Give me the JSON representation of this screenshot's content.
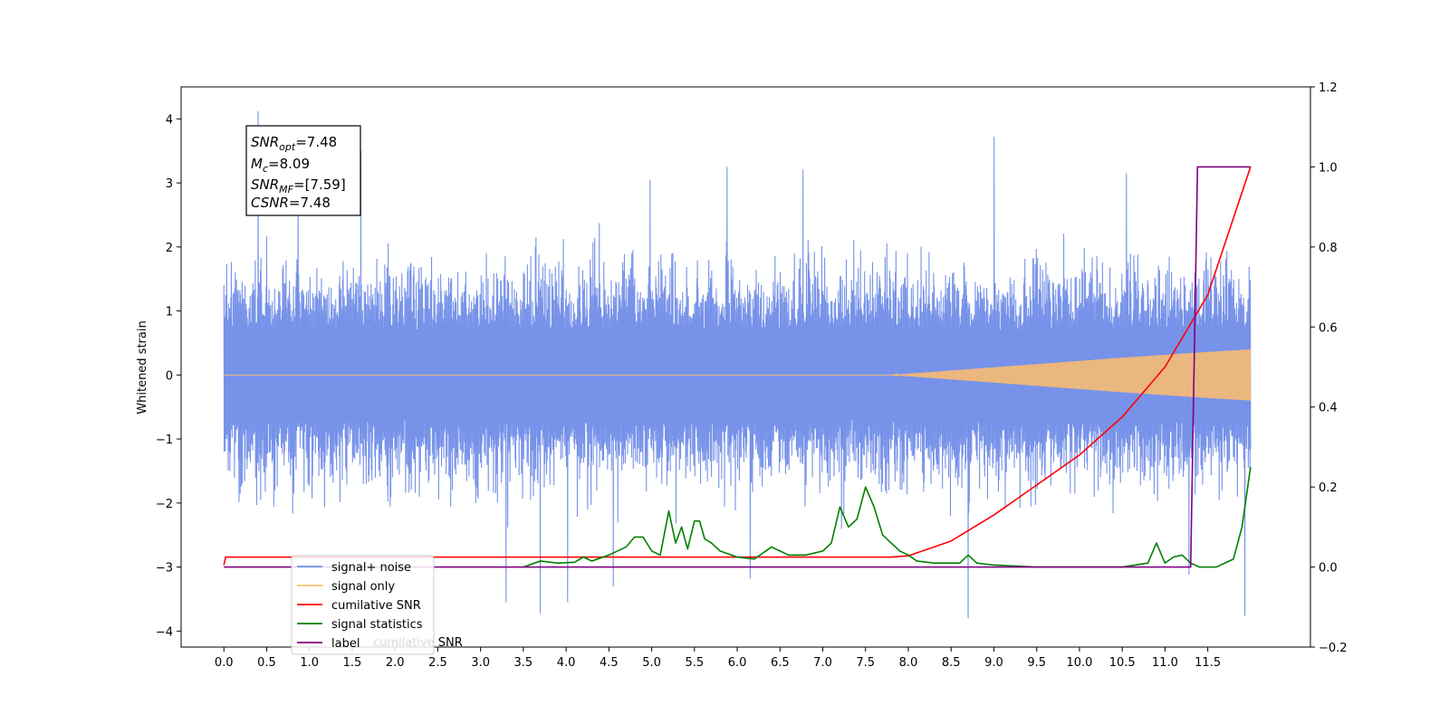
{
  "chart_data": {
    "type": "line",
    "title": "",
    "xlabel": "",
    "ylabel": "Whitened strain",
    "ylabel_right": "",
    "xlim": [
      -0.5,
      12.7
    ],
    "ylim": [
      -4.25,
      4.5
    ],
    "ylim_right": [
      -0.2,
      1.2
    ],
    "grid": false,
    "legend_location": "lower-left",
    "x_ticks": [
      "0.0",
      "0.5",
      "1.0",
      "1.5",
      "2.0",
      "2.5",
      "3.0",
      "3.5",
      "4.0",
      "4.5",
      "5.0",
      "5.5",
      "6.0",
      "6.5",
      "7.0",
      "7.5",
      "8.0",
      "8.5",
      "9.0",
      "9.5",
      "10.0",
      "10.5",
      "11.0",
      "11.5"
    ],
    "y_ticks": [
      "−4",
      "−3",
      "−2",
      "−1",
      "0",
      "1",
      "2",
      "3",
      "4"
    ],
    "y_ticks_right": [
      "−0.2",
      "0.0",
      "0.2",
      "0.4",
      "0.6",
      "0.8",
      "1.0",
      "1.2"
    ],
    "annotation": {
      "snr_opt": "=7.48",
      "mc": "=8.09",
      "snr_mf": "=[7.59]",
      "csnr": "=7.48"
    },
    "series": [
      {
        "name": "signal+ noise",
        "color": "#6f8ce8",
        "axis": "left",
        "x_range": [
          0.0,
          12.0
        ],
        "envelope_y": [
          -2.6,
          2.6
        ],
        "extreme_peaks": [
          [
            0.4,
            4.12
          ],
          [
            0.87,
            3.43
          ],
          [
            1.6,
            3.5
          ],
          [
            9.0,
            3.72
          ],
          [
            5.88,
            3.25
          ],
          [
            4.98,
            3.05
          ],
          [
            6.77,
            3.21
          ],
          [
            10.55,
            3.15
          ],
          [
            3.7,
            -3.72
          ],
          [
            4.02,
            -3.55
          ],
          [
            3.3,
            -3.55
          ],
          [
            4.55,
            -3.3
          ],
          [
            8.7,
            -3.8
          ],
          [
            11.93,
            -3.76
          ],
          [
            11.28,
            -3.12
          ],
          [
            6.15,
            -3.18
          ]
        ]
      },
      {
        "name": "signal only",
        "color": "#ffbd6b",
        "axis": "left",
        "x_range": [
          0.0,
          12.0
        ],
        "amplitude_envelope": [
          [
            0.0,
            0.0
          ],
          [
            7.8,
            0.0
          ],
          [
            8.5,
            0.07
          ],
          [
            9.5,
            0.17
          ],
          [
            10.5,
            0.27
          ],
          [
            11.5,
            0.36
          ],
          [
            12.0,
            0.4
          ]
        ]
      },
      {
        "name": "cumilative SNR",
        "color": "#ff0000",
        "axis": "right",
        "x": [
          0.0,
          0.02,
          7.8,
          8.0,
          8.5,
          9.0,
          9.5,
          10.0,
          10.5,
          11.0,
          11.5,
          12.0
        ],
        "y": [
          0.005,
          0.025,
          0.025,
          0.028,
          0.065,
          0.13,
          0.205,
          0.28,
          0.375,
          0.5,
          0.68,
          1.0
        ]
      },
      {
        "name": "signal statistics",
        "color": "#008000",
        "axis": "right",
        "x": [
          3.5,
          3.7,
          3.9,
          4.1,
          4.2,
          4.3,
          4.5,
          4.7,
          4.8,
          4.9,
          5.0,
          5.1,
          5.2,
          5.28,
          5.35,
          5.42,
          5.5,
          5.56,
          5.62,
          5.7,
          5.8,
          6.0,
          6.2,
          6.4,
          6.5,
          6.6,
          6.8,
          7.0,
          7.1,
          7.2,
          7.3,
          7.4,
          7.5,
          7.6,
          7.7,
          7.8,
          7.9,
          8.0,
          8.1,
          8.3,
          8.6,
          8.7,
          8.8,
          9.0,
          9.5,
          10.0,
          10.5,
          10.8,
          10.9,
          11.0,
          11.1,
          11.2,
          11.3,
          11.4,
          11.6,
          11.8,
          11.9,
          12.0
        ],
        "y": [
          0.0,
          0.015,
          0.01,
          0.012,
          0.025,
          0.015,
          0.03,
          0.05,
          0.075,
          0.075,
          0.04,
          0.03,
          0.14,
          0.06,
          0.1,
          0.045,
          0.115,
          0.115,
          0.07,
          0.06,
          0.04,
          0.025,
          0.02,
          0.05,
          0.04,
          0.03,
          0.03,
          0.04,
          0.06,
          0.15,
          0.1,
          0.12,
          0.2,
          0.15,
          0.08,
          0.06,
          0.04,
          0.03,
          0.015,
          0.01,
          0.01,
          0.03,
          0.01,
          0.005,
          0.0,
          0.0,
          0.0,
          0.01,
          0.06,
          0.01,
          0.025,
          0.03,
          0.01,
          0.0,
          0.0,
          0.02,
          0.1,
          0.25
        ]
      },
      {
        "name": "label",
        "color": "#800080",
        "axis": "right",
        "x": [
          0.0,
          11.3,
          11.38,
          11.85,
          12.0
        ],
        "y": [
          0.0,
          0.0,
          1.0,
          1.0,
          1.0
        ]
      }
    ],
    "legend_overlap_text": "cumilative SNR"
  }
}
